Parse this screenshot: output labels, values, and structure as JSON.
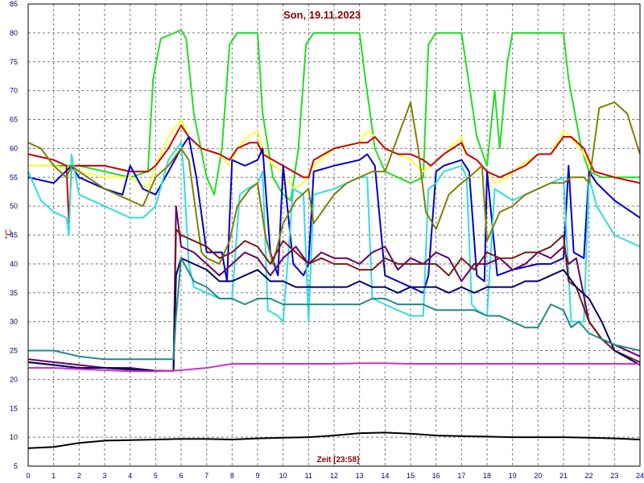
{
  "chart_data": {
    "type": "line",
    "title": "Son, 19.11.2023",
    "xlabel": "Zeit [23:58]",
    "ylabel": "°C",
    "xlim": [
      0,
      24
    ],
    "ylim": [
      5,
      85
    ],
    "x_ticks": [
      "0",
      "1",
      "2",
      "3",
      "4",
      "5",
      "6",
      "7",
      "8",
      "9",
      "10",
      "11",
      "12",
      "13",
      "14",
      "15",
      "16",
      "17",
      "18",
      "19",
      "20",
      "21",
      "22",
      "23",
      "24"
    ],
    "y_ticks": [
      "5",
      "10",
      "15",
      "20",
      "25",
      "30",
      "35",
      "40",
      "45",
      "50",
      "55",
      "60",
      "65",
      "70",
      "75",
      "80",
      "85"
    ],
    "grid": true,
    "series": [
      {
        "color": "#22dd22",
        "x": [
          0,
          1,
          2,
          3,
          4,
          4.7,
          4.9,
          5.2,
          6,
          6.2,
          6.5,
          7,
          7.3,
          7.6,
          7.9,
          8.2,
          9,
          9.2,
          9.6,
          10,
          10.3,
          10.6,
          10.9,
          11.2,
          12,
          13,
          13.2,
          13.6,
          14,
          14.5,
          15,
          15.5,
          15.7,
          16,
          17,
          17.2,
          17.6,
          18,
          18.3,
          18.5,
          18.8,
          19,
          19.5,
          20,
          21,
          21.2,
          21.7,
          22,
          22.5,
          23,
          24
        ],
        "y": [
          57,
          57,
          57,
          56,
          55,
          56,
          72,
          79,
          80.5,
          79,
          66,
          55,
          52,
          60,
          78,
          80,
          80,
          66,
          55,
          52,
          51,
          60,
          78,
          80,
          80,
          80,
          73,
          60,
          56,
          55,
          54,
          55,
          78,
          80,
          80,
          74,
          62,
          57,
          70,
          60,
          75,
          80,
          80,
          80,
          80,
          72,
          60,
          56,
          55,
          55,
          55
        ]
      },
      {
        "color": "#ffff33",
        "x": [
          0,
          1,
          2,
          3,
          4,
          4.7,
          5,
          5.5,
          6,
          6.3,
          6.8,
          7.5,
          7.9,
          8.2,
          8.6,
          9,
          9.2,
          9.6,
          10,
          10.4,
          10.8,
          11.2,
          12,
          13,
          13.3,
          13.6,
          14,
          14.5,
          15,
          15.5,
          15.8,
          16.3,
          17,
          17.2,
          17.6,
          18,
          18.3,
          18.8,
          19.3,
          20,
          20.5,
          21,
          21.3,
          21.8,
          22.2,
          23,
          24
        ],
        "y": [
          57,
          57,
          56,
          55,
          55,
          53,
          57,
          62,
          65,
          62,
          60,
          59,
          57,
          60,
          62,
          63,
          60,
          57,
          56,
          53,
          54,
          57,
          60,
          61,
          63,
          62,
          60,
          59,
          58,
          56,
          57,
          59,
          62,
          59,
          58,
          56,
          54,
          55,
          57,
          59,
          59,
          63,
          62,
          59,
          56,
          55,
          54
        ]
      },
      {
        "color": "#cc0000",
        "x": [
          0,
          1,
          1.5,
          1.6,
          1.7,
          2,
          3,
          4,
          4.7,
          5,
          5.5,
          6,
          6.3,
          6.8,
          7.5,
          7.9,
          8.2,
          8.7,
          9,
          9.2,
          9.6,
          10,
          10.4,
          10.8,
          11,
          11.2,
          12,
          13,
          13.3,
          13.6,
          14,
          14.5,
          15,
          15.5,
          15.8,
          16.3,
          17,
          17.2,
          17.6,
          18,
          18.5,
          19,
          19.5,
          20,
          20.5,
          21,
          21.3,
          21.8,
          22.2,
          23,
          24
        ],
        "y": [
          59,
          58,
          57,
          47,
          57,
          57,
          57,
          56,
          56,
          57,
          60,
          64,
          62,
          60,
          59,
          58,
          60,
          61,
          61,
          59,
          58,
          57,
          56,
          55,
          55,
          58,
          60,
          61,
          61,
          62,
          60,
          59,
          59,
          58,
          57,
          59,
          61,
          59,
          58,
          56,
          55,
          56,
          57,
          59,
          59,
          62,
          62,
          60,
          56,
          55,
          54
        ]
      },
      {
        "color": "#0000cc",
        "x": [
          0,
          1,
          1.7,
          2,
          3,
          3.7,
          4,
          4.5,
          5,
          5.5,
          6,
          6.3,
          6.6,
          7,
          7.6,
          7.8,
          8,
          8.5,
          9,
          9.2,
          9.5,
          9.8,
          10,
          10.4,
          10.8,
          11,
          11.2,
          12,
          13,
          13.3,
          13.6,
          14,
          14.5,
          15,
          15.5,
          15.7,
          16,
          16.3,
          17,
          17.3,
          17.6,
          17.9,
          18,
          18.4,
          19,
          20,
          20.5,
          21,
          21.2,
          21.4,
          21.8,
          22,
          22.3,
          23,
          24
        ],
        "y": [
          55,
          54,
          57,
          55,
          53,
          52,
          57,
          53,
          52,
          56,
          60,
          62,
          55,
          42,
          42,
          37,
          58,
          57,
          58,
          60,
          42,
          38,
          57,
          40,
          38,
          40,
          56,
          57,
          58,
          59,
          57,
          38,
          37,
          36,
          35,
          38,
          56,
          57,
          58,
          56,
          38,
          37,
          56,
          38,
          39,
          40,
          40,
          41,
          57,
          42,
          41,
          56,
          54,
          51,
          48
        ]
      },
      {
        "color": "#33dddd",
        "x": [
          0,
          0.5,
          1,
          1.5,
          1.6,
          1.7,
          2,
          3,
          4,
          4.5,
          5,
          5.5,
          6,
          6.1,
          6.3,
          6.5,
          7,
          7.5,
          8,
          8.3,
          8.6,
          9,
          9.2,
          9.4,
          9.8,
          10,
          10.4,
          10.8,
          11,
          11.2,
          12,
          13,
          13.3,
          13.5,
          14,
          14.5,
          15,
          15.5,
          15.7,
          16,
          16.3,
          17,
          17.2,
          17.4,
          17.6,
          18,
          18.3,
          19,
          20,
          20.5,
          21,
          21.3,
          21.8,
          22,
          22.3,
          23,
          24
        ],
        "y": [
          56,
          51,
          49,
          48,
          45,
          59,
          52,
          50,
          48,
          48,
          50,
          58,
          61,
          56,
          40,
          36,
          35,
          34,
          34,
          52,
          53,
          54,
          56,
          32,
          31,
          30,
          53,
          52,
          30,
          52,
          53,
          55,
          55,
          34,
          33,
          32,
          31,
          31,
          53,
          54,
          56,
          57,
          55,
          33,
          32,
          31,
          53,
          51,
          53,
          54,
          55,
          30,
          30,
          55,
          50,
          45,
          43
        ]
      },
      {
        "color": "#808000",
        "x": [
          0,
          0.5,
          1,
          1.5,
          1.7,
          2,
          3,
          3.5,
          4,
          4.5,
          5,
          5.5,
          6,
          6.3,
          6.8,
          7,
          7.5,
          7.9,
          8.2,
          8.7,
          9,
          9.3,
          9.6,
          10,
          10.5,
          11,
          11.2,
          12,
          12.5,
          13,
          13.5,
          14,
          14.5,
          15,
          15.3,
          15.6,
          16,
          16.5,
          17,
          17.3,
          17.8,
          18,
          18.5,
          19,
          19.5,
          20,
          20.5,
          21,
          21.3,
          21.8,
          22,
          22.4,
          23,
          23.5,
          24
        ],
        "y": [
          61,
          60,
          57,
          55,
          57,
          56,
          53,
          52,
          51,
          50,
          55,
          57,
          60,
          58,
          42,
          41,
          40,
          44,
          50,
          53,
          54,
          45,
          40,
          47,
          51,
          53,
          47,
          52,
          54,
          55,
          56,
          56,
          62,
          68,
          60,
          49,
          46,
          52,
          54,
          55,
          57,
          44,
          49,
          50,
          52,
          53,
          54,
          54,
          55,
          55,
          54,
          67,
          68,
          66,
          59
        ]
      },
      {
        "color": "#660066",
        "x": [
          0,
          1,
          2,
          3,
          4,
          5,
          5.7,
          5.8,
          6,
          6.5,
          7,
          7.5,
          8,
          8.5,
          9,
          9.5,
          10,
          10.5,
          11,
          11.5,
          12,
          12.5,
          13,
          13.5,
          14,
          14.5,
          15,
          15.5,
          16,
          16.5,
          17,
          17.5,
          18,
          18.5,
          19,
          19.5,
          20,
          20.5,
          21,
          21.2,
          21.5,
          22,
          22.5,
          23,
          24
        ],
        "y": [
          23.5,
          23,
          22.5,
          22,
          22,
          21.5,
          21.5,
          50,
          43,
          42,
          40,
          38,
          40,
          42,
          41,
          38,
          41,
          43,
          40,
          42,
          41,
          41,
          40,
          42,
          43,
          39,
          41,
          40,
          42,
          41,
          37,
          40,
          40,
          41,
          39,
          40,
          42,
          41,
          43,
          40,
          41,
          30,
          27,
          26,
          24
        ]
      },
      {
        "color": "#7a1a1a",
        "x": [
          0,
          1,
          2,
          3,
          4,
          5,
          5.7,
          5.8,
          6,
          6.5,
          7,
          7.5,
          8,
          8.5,
          9,
          9.5,
          10,
          10.5,
          11,
          11.5,
          12,
          12.5,
          13,
          13.5,
          14,
          14.5,
          15,
          15.5,
          16,
          16.5,
          17,
          17.5,
          18,
          18.5,
          19,
          19.5,
          20,
          20.5,
          21,
          21.2,
          21.5,
          22,
          22.5,
          23,
          24
        ],
        "y": [
          23,
          22.5,
          22,
          22,
          21.7,
          21.5,
          21.5,
          46,
          45,
          44,
          43,
          41,
          42,
          44,
          43,
          40,
          44,
          42,
          40,
          41,
          40,
          40,
          39,
          39,
          41,
          40,
          40,
          40,
          40,
          38,
          41,
          39,
          42,
          41,
          41,
          42,
          42,
          43,
          45,
          37,
          36,
          30,
          27,
          25,
          23
        ]
      },
      {
        "color": "#000066",
        "x": [
          0,
          1,
          2,
          3,
          4,
          5,
          5.7,
          5.8,
          6,
          6.5,
          7,
          7.5,
          8,
          8.5,
          9,
          9.5,
          10,
          10.5,
          11,
          11.5,
          12,
          12.5,
          13,
          13.5,
          14,
          14.5,
          15,
          15.5,
          16,
          16.5,
          17,
          17.5,
          18,
          18.5,
          19,
          19.5,
          20,
          20.5,
          21,
          21.5,
          22,
          22.5,
          23,
          24
        ],
        "y": [
          23,
          22.5,
          22,
          22,
          21.8,
          21.5,
          21.5,
          38,
          41,
          40,
          39,
          37,
          37,
          38,
          39,
          37,
          37,
          36,
          36,
          36,
          36,
          36,
          37,
          36,
          36,
          35,
          36,
          36,
          36,
          35,
          36,
          35,
          36,
          36,
          36,
          37,
          37,
          38,
          39,
          36,
          34,
          30,
          25,
          22.5
        ]
      },
      {
        "color": "#228888",
        "x": [
          0,
          1,
          2,
          3,
          4,
          4.5,
          5,
          5.7,
          5.8,
          6,
          6.5,
          7,
          7.5,
          8,
          8.5,
          9,
          9.5,
          10,
          10.5,
          11,
          11.5,
          12,
          12.5,
          13,
          13.5,
          14,
          14.5,
          15,
          15.5,
          16,
          16.5,
          17,
          17.5,
          18,
          18.5,
          19,
          19.5,
          20,
          20.5,
          21,
          21.3,
          21.6,
          22,
          22.5,
          23,
          24
        ],
        "y": [
          25,
          25,
          24,
          23.5,
          23.5,
          23.5,
          23.5,
          23.5,
          31,
          41,
          37,
          36,
          34,
          34,
          33,
          34,
          34,
          33,
          33,
          33,
          33,
          33,
          33,
          33,
          34,
          34,
          33,
          33,
          33,
          32,
          32,
          32,
          32,
          31,
          31,
          30,
          29,
          29,
          33,
          32,
          29,
          30,
          28,
          27,
          26,
          25
        ]
      },
      {
        "color": "#cc33cc",
        "x": [
          0,
          1,
          2,
          3,
          4,
          5,
          6,
          7,
          8,
          9,
          10,
          11,
          12,
          13,
          14,
          15,
          16,
          17,
          18,
          19,
          20,
          21,
          22,
          23,
          24
        ],
        "y": [
          22,
          22,
          21.8,
          21.6,
          21.4,
          21.4,
          21.6,
          22,
          22.7,
          22.7,
          22.7,
          22.7,
          22.7,
          22.8,
          22.8,
          22.7,
          22.7,
          22.7,
          22.7,
          22.7,
          22.7,
          22.7,
          22.7,
          22.7,
          22.7
        ]
      },
      {
        "color": "#000000",
        "x": [
          0,
          1,
          2,
          3,
          4,
          5,
          6,
          7,
          8,
          9,
          10,
          11,
          12,
          13,
          14,
          15,
          16,
          17,
          18,
          19,
          20,
          21,
          22,
          23,
          24
        ],
        "y": [
          8.1,
          8.3,
          9,
          9.4,
          9.5,
          9.6,
          9.7,
          9.7,
          9.6,
          9.8,
          9.9,
          10,
          10.3,
          10.7,
          10.8,
          10.6,
          10.3,
          10.2,
          10.1,
          10,
          10,
          10,
          9.9,
          9.8,
          9.6
        ]
      }
    ]
  }
}
